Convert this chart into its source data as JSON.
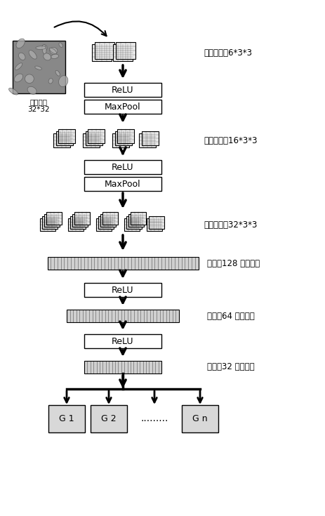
{
  "title": "",
  "background_color": "#ffffff",
  "conv_label_1": "二维卷积，6*3*3",
  "conv_label_2": "二维卷积，16*3*3",
  "conv_label_3": "二维卷积，32*3*3",
  "fc_label_1": "连接（128 个单元）",
  "fc_label_2": "连接（64 个单元）",
  "fc_label_3": "连接（32 个单元）",
  "input_label_1": "输入图像",
  "input_label_2": "32*32",
  "relu_label": "ReLU",
  "maxpool_label": "MaxPool",
  "output_labels": [
    "G 1",
    "G 2",
    ".........",
    "G n"
  ],
  "font_size": 9,
  "chinese_font_size": 9
}
